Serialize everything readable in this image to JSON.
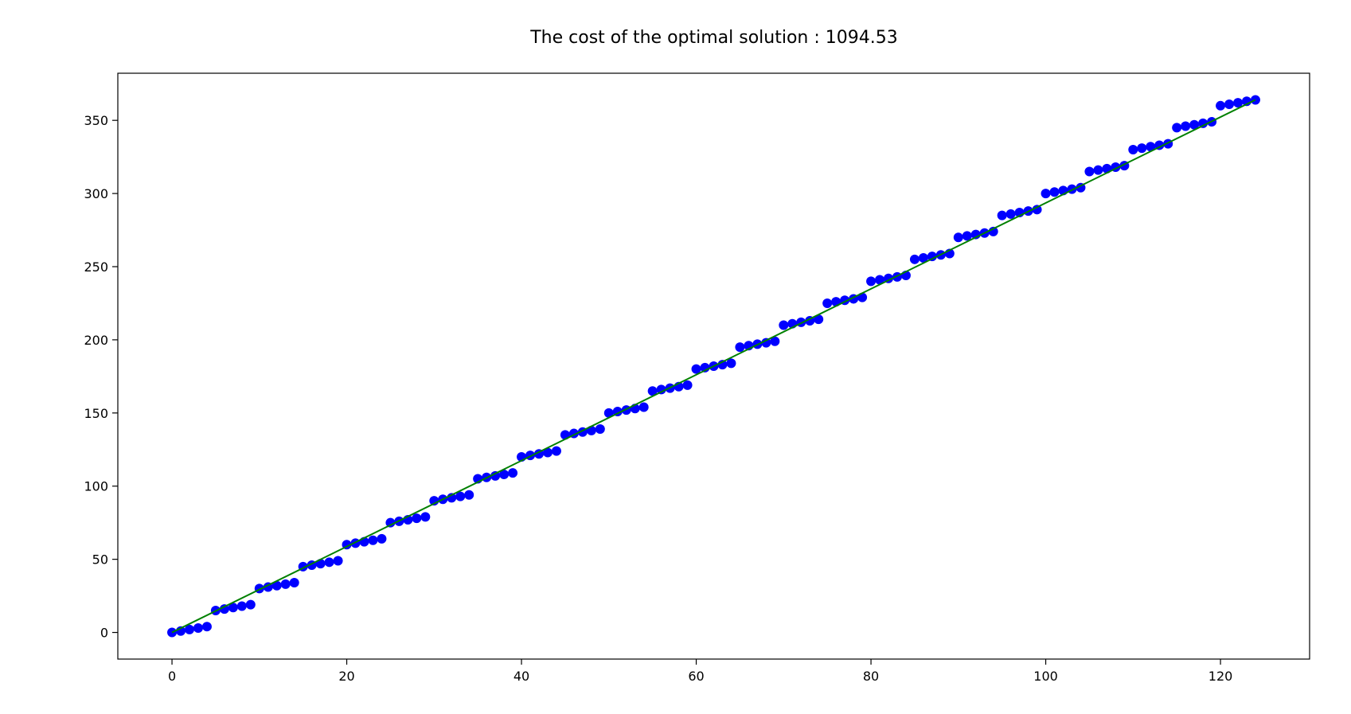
{
  "chart_data": {
    "type": "scatter",
    "title": "The cost of the optimal solution : 1094.53",
    "xlabel": "",
    "ylabel": "",
    "xlim": [
      -6.2,
      130.2
    ],
    "ylim": [
      -18.2,
      382.2
    ],
    "xticks": [
      0,
      20,
      40,
      60,
      80,
      100,
      120
    ],
    "yticks": [
      0,
      50,
      100,
      150,
      200,
      250,
      300,
      350
    ],
    "grid": false,
    "colors": {
      "points": "#0000ff",
      "line": "#008000",
      "axes": "#000000"
    },
    "series": [
      {
        "kind": "points",
        "x": [
          0,
          1,
          2,
          3,
          4,
          5,
          6,
          7,
          8,
          9,
          10,
          11,
          12,
          13,
          14,
          15,
          16,
          17,
          18,
          19,
          20,
          21,
          22,
          23,
          24,
          25,
          26,
          27,
          28,
          29,
          30,
          31,
          32,
          33,
          34,
          35,
          36,
          37,
          38,
          39,
          40,
          41,
          42,
          43,
          44,
          45,
          46,
          47,
          48,
          49,
          50,
          51,
          52,
          53,
          54,
          55,
          56,
          57,
          58,
          59,
          60,
          61,
          62,
          63,
          64,
          65,
          66,
          67,
          68,
          69,
          70,
          71,
          72,
          73,
          74,
          75,
          76,
          77,
          78,
          79,
          80,
          81,
          82,
          83,
          84,
          85,
          86,
          87,
          88,
          89,
          90,
          91,
          92,
          93,
          94,
          95,
          96,
          97,
          98,
          99,
          100,
          101,
          102,
          103,
          104,
          105,
          106,
          107,
          108,
          109,
          110,
          111,
          112,
          113,
          114,
          115,
          116,
          117,
          118,
          119,
          120,
          121,
          122,
          123,
          124
        ],
        "y": [
          0,
          1,
          2,
          3,
          4,
          15,
          16,
          17,
          18,
          19,
          30,
          31,
          32,
          33,
          34,
          45,
          46,
          47,
          48,
          49,
          60,
          61,
          62,
          63,
          64,
          75,
          76,
          77,
          78,
          79,
          90,
          91,
          92,
          93,
          94,
          105,
          106,
          107,
          108,
          109,
          120,
          121,
          122,
          123,
          124,
          135,
          136,
          137,
          138,
          139,
          150,
          151,
          152,
          153,
          154,
          165,
          166,
          167,
          168,
          169,
          180,
          181,
          182,
          183,
          184,
          195,
          196,
          197,
          198,
          199,
          210,
          211,
          212,
          213,
          214,
          225,
          226,
          227,
          228,
          229,
          240,
          241,
          242,
          243,
          244,
          255,
          256,
          257,
          258,
          259,
          270,
          271,
          272,
          273,
          274,
          285,
          286,
          287,
          288,
          289,
          300,
          301,
          302,
          303,
          304,
          315,
          316,
          317,
          318,
          319,
          330,
          331,
          332,
          333,
          334,
          345,
          346,
          347,
          348,
          349,
          360,
          361,
          362,
          363,
          364
        ]
      },
      {
        "kind": "line",
        "x": [
          0,
          124
        ],
        "y": [
          0,
          364
        ]
      }
    ]
  }
}
